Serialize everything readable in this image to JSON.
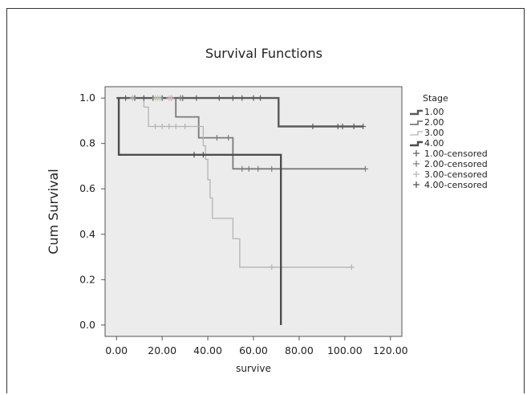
{
  "chart_data": {
    "type": "line",
    "title": "Survival Functions",
    "xlabel": "survive",
    "ylabel": "Cum Survival",
    "xlim": [
      -5,
      125
    ],
    "ylim": [
      -0.05,
      1.05
    ],
    "xticks": [
      "0.00",
      "20.00",
      "40.00",
      "60.00",
      "80.00",
      "100.00",
      "120.00"
    ],
    "xtick_values": [
      0,
      20,
      40,
      60,
      80,
      100,
      120
    ],
    "yticks": [
      "0.0",
      "0.2",
      "0.4",
      "0.6",
      "0.8",
      "1.0"
    ],
    "ytick_values": [
      0,
      0.2,
      0.4,
      0.6,
      0.8,
      1.0
    ],
    "plot_background": "#ececec",
    "legend": {
      "title": "Stage",
      "placement": "right",
      "entries": [
        "1.00",
        "2.00",
        "3.00",
        "4.00",
        "1.00-censored",
        "2.00-censored",
        "3.00-censored",
        "4.00-censored"
      ]
    },
    "series": [
      {
        "name": "1.00",
        "color": "#5a5a5a",
        "width_class": "thick",
        "steps": [
          [
            0,
            1.0
          ],
          [
            26,
            1.0
          ],
          [
            26,
            1.0
          ],
          [
            71,
            1.0
          ],
          [
            71,
            0.875
          ],
          [
            108,
            0.875
          ]
        ],
        "censored": [
          [
            4,
            1.0
          ],
          [
            8,
            1.0
          ],
          [
            12,
            1.0
          ],
          [
            16,
            1.0
          ],
          [
            20,
            1.0
          ],
          [
            24,
            1.0
          ],
          [
            29,
            1.0
          ],
          [
            35,
            1.0
          ],
          [
            45,
            1.0
          ],
          [
            51,
            1.0
          ],
          [
            55,
            1.0
          ],
          [
            60,
            1.0
          ],
          [
            63,
            1.0
          ],
          [
            86,
            0.875
          ],
          [
            97,
            0.875
          ],
          [
            99,
            0.875
          ],
          [
            104,
            0.875
          ],
          [
            108,
            0.875
          ]
        ]
      },
      {
        "name": "2.00",
        "color": "#7a7a7a",
        "width_class": "medium",
        "steps": [
          [
            26,
            1.0
          ],
          [
            26,
            0.917
          ],
          [
            36,
            0.917
          ],
          [
            36,
            0.825
          ],
          [
            51,
            0.825
          ],
          [
            51,
            0.688
          ],
          [
            109,
            0.688
          ]
        ],
        "censored": [
          [
            28,
            1.0
          ],
          [
            44,
            0.825
          ],
          [
            49,
            0.825
          ],
          [
            55,
            0.688
          ],
          [
            58,
            0.688
          ],
          [
            62,
            0.688
          ],
          [
            68,
            0.688
          ],
          [
            109,
            0.688
          ]
        ]
      },
      {
        "name": "3.00",
        "color": "#b4b4b4",
        "width_class": "thin",
        "steps": [
          [
            12,
            1.0
          ],
          [
            12,
            0.96
          ],
          [
            14,
            0.96
          ],
          [
            14,
            0.875
          ],
          [
            38,
            0.875
          ],
          [
            38,
            0.79
          ],
          [
            39,
            0.79
          ],
          [
            39,
            0.73
          ],
          [
            40,
            0.73
          ],
          [
            40,
            0.64
          ],
          [
            41,
            0.64
          ],
          [
            41,
            0.56
          ],
          [
            42,
            0.56
          ],
          [
            42,
            0.47
          ],
          [
            51,
            0.47
          ],
          [
            51,
            0.38
          ],
          [
            54,
            0.38
          ],
          [
            54,
            0.255
          ],
          [
            103,
            0.255
          ]
        ],
        "censored": [
          [
            7,
            1.0
          ],
          [
            17,
            0.875
          ],
          [
            20,
            0.875
          ],
          [
            23,
            0.875
          ],
          [
            26,
            0.875
          ],
          [
            30,
            0.875
          ],
          [
            68,
            0.255
          ],
          [
            103,
            0.255
          ]
        ]
      },
      {
        "name": "4.00",
        "color": "#4d4d4d",
        "width_class": "thick",
        "steps": [
          [
            1,
            1.0
          ],
          [
            1,
            0.75
          ],
          [
            72,
            0.75
          ],
          [
            72,
            0.0
          ]
        ],
        "censored": [
          [
            34,
            0.75
          ],
          [
            38,
            0.75
          ]
        ]
      }
    ],
    "extra_censor_marks": [
      {
        "series": "3.00",
        "color": "#d9b8c8",
        "points": [
          [
            18,
            1.0
          ],
          [
            23,
            1.0
          ],
          [
            24,
            1.0
          ]
        ]
      },
      {
        "series": "3.00",
        "color": "#b9d6b2",
        "points": [
          [
            17,
            1.0
          ],
          [
            19,
            1.0
          ]
        ]
      }
    ]
  }
}
